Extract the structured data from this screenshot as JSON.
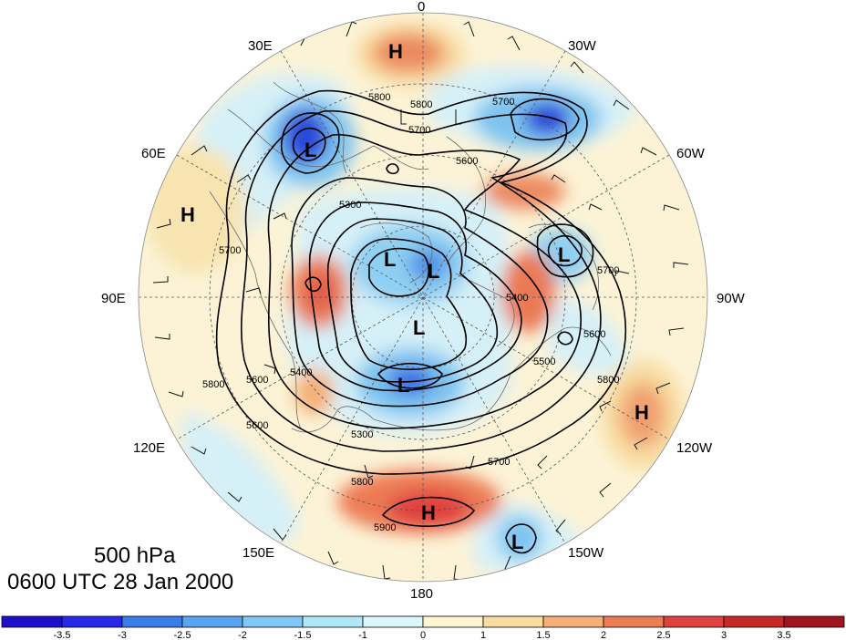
{
  "title": {
    "level": "500 hPa",
    "datetime": "0600 UTC 28 Jan 2000"
  },
  "longitude_labels": {
    "lon_0": "0",
    "lon_30w": "30W",
    "lon_60w": "60W",
    "lon_90w": "90W",
    "lon_120w": "120W",
    "lon_150w": "150W",
    "lon_180": "180",
    "lon_150e": "150E",
    "lon_120e": "120E",
    "lon_90e": "90E",
    "lon_60e": "60E",
    "lon_30e": "30E"
  },
  "contour_labels": {
    "c_5800_top_a": "5800",
    "c_5800_top_b": "5800",
    "c_5700_top": "5700",
    "c_5700_nw": "5700",
    "c_5600_ne": "5600",
    "c_5300_nw": "5300",
    "c_5600_w": "5600",
    "c_5700_w": "5700",
    "c_5800_w": "5800",
    "c_5600_sw": "5600",
    "c_5400_sw": "5400",
    "c_5300_s": "5300",
    "c_5700_s": "5700",
    "c_5800_s": "5800",
    "c_5900_s": "5900",
    "c_5700_e": "5700",
    "c_5600_e": "5600",
    "c_5500_e": "5500",
    "c_5400_e": "5400",
    "c_5800_e": "5800"
  },
  "pressure_centers": [
    {
      "type": "H",
      "id": "north-high"
    },
    {
      "type": "L",
      "id": "europe-low"
    },
    {
      "type": "H",
      "id": "west-high"
    },
    {
      "type": "L",
      "id": "arctic-low-1"
    },
    {
      "type": "L",
      "id": "arctic-low-2"
    },
    {
      "type": "L",
      "id": "pole-low"
    },
    {
      "type": "L",
      "id": "siberia-low"
    },
    {
      "type": "L",
      "id": "canada-low"
    },
    {
      "type": "H",
      "id": "pacific-high-east"
    },
    {
      "type": "H",
      "id": "pacific-high"
    },
    {
      "type": "L",
      "id": "pacific-low"
    }
  ],
  "colorbar": {
    "tick_labels": [
      "-3.5",
      "-3",
      "-2.5",
      "-2",
      "-1.5",
      "-1",
      "0",
      "1",
      "1.5",
      "2",
      "2.5",
      "3",
      "3.5"
    ],
    "colors": [
      "#1d10c8",
      "#2828e8",
      "#3a7de8",
      "#5aa5f0",
      "#80c8f5",
      "#b0e8f8",
      "#dcf6fa",
      "#fcf6d2",
      "#f8dca0",
      "#f4b078",
      "#ec7c54",
      "#e04040",
      "#c82828",
      "#a01420"
    ]
  },
  "colors": {
    "strong_negative": "#2a4ad8",
    "negative": "#7ec4f0",
    "weak_negative": "#cfeef8",
    "weak_positive": "#fbecc4",
    "positive": "#f4a070",
    "strong_positive": "#e04838",
    "contour": "#000000",
    "coastline": "#555555",
    "grid": "#444444"
  }
}
